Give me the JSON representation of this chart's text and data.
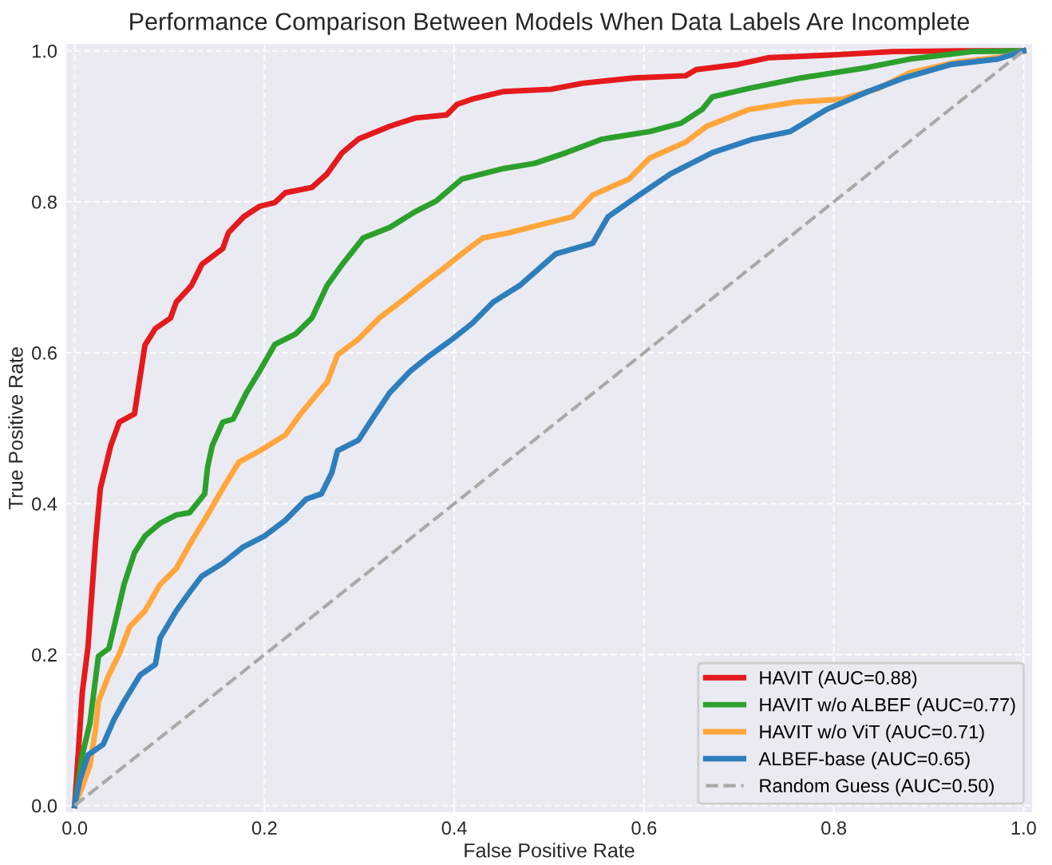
{
  "chart_data": {
    "type": "line",
    "title": "Performance Comparison Between Models When Data Labels Are Incomplete",
    "xlabel": "False Positive Rate",
    "ylabel": "True Positive Rate",
    "xlim": [
      -0.01,
      1.01
    ],
    "ylim": [
      -0.01,
      1.01
    ],
    "xticks": [
      {
        "value": 0,
        "label": "0.0"
      },
      0.2,
      0.4,
      0.6,
      0.8,
      {
        "value": 1,
        "label": "1.0"
      }
    ],
    "yticks": [
      {
        "value": 0,
        "label": "0.0"
      },
      0.2,
      0.4,
      0.6,
      0.8,
      {
        "value": 1,
        "label": "1.0"
      }
    ],
    "grid": true,
    "legend": "bottom right",
    "series": [
      {
        "name": "HAVIT (AUC=0.88)",
        "color": "#e41a1c",
        "x": [
          0,
          0.008,
          0.014,
          0.022,
          0.027,
          0.038,
          0.047,
          0.063,
          0.074,
          0.085,
          0.101,
          0.107,
          0.123,
          0.134,
          0.156,
          0.162,
          0.178,
          0.195,
          0.211,
          0.222,
          0.25,
          0.266,
          0.282,
          0.299,
          0.332,
          0.359,
          0.392,
          0.403,
          0.419,
          0.452,
          0.502,
          0.535,
          0.589,
          0.644,
          0.655,
          0.699,
          0.732,
          0.792,
          0.863,
          0.934,
          1
        ],
        "values": [
          0,
          0.15,
          0.21,
          0.35,
          0.42,
          0.477,
          0.508,
          0.519,
          0.61,
          0.632,
          0.646,
          0.667,
          0.689,
          0.717,
          0.738,
          0.759,
          0.78,
          0.794,
          0.799,
          0.812,
          0.819,
          0.837,
          0.865,
          0.883,
          0.9,
          0.911,
          0.915,
          0.929,
          0.936,
          0.946,
          0.949,
          0.957,
          0.964,
          0.967,
          0.975,
          0.982,
          0.991,
          0.994,
          0.999,
          1.0,
          1.0
        ]
      },
      {
        "name": "HAVIT w/o ALBEF (AUC=0.77)",
        "color": "#2ca02c",
        "x": [
          0,
          0.008,
          0.016,
          0.025,
          0.036,
          0.044,
          0.052,
          0.063,
          0.074,
          0.09,
          0.107,
          0.121,
          0.137,
          0.14,
          0.145,
          0.156,
          0.167,
          0.181,
          0.195,
          0.211,
          0.233,
          0.25,
          0.266,
          0.282,
          0.304,
          0.332,
          0.359,
          0.381,
          0.408,
          0.452,
          0.485,
          0.518,
          0.556,
          0.606,
          0.639,
          0.661,
          0.672,
          0.71,
          0.765,
          0.836,
          0.88,
          0.946,
          1
        ],
        "values": [
          0,
          0.067,
          0.109,
          0.198,
          0.208,
          0.25,
          0.293,
          0.335,
          0.357,
          0.374,
          0.385,
          0.388,
          0.413,
          0.448,
          0.477,
          0.508,
          0.512,
          0.547,
          0.576,
          0.611,
          0.625,
          0.646,
          0.689,
          0.717,
          0.752,
          0.766,
          0.787,
          0.801,
          0.83,
          0.844,
          0.851,
          0.865,
          0.883,
          0.893,
          0.904,
          0.922,
          0.939,
          0.95,
          0.964,
          0.978,
          0.989,
          0.999,
          1.0
        ]
      },
      {
        "name": "HAVIT w/o ViT (AUC=0.71)",
        "color": "#ffa73d",
        "x": [
          0,
          0.008,
          0.016,
          0.022,
          0.025,
          0.036,
          0.047,
          0.058,
          0.074,
          0.09,
          0.107,
          0.123,
          0.14,
          0.156,
          0.173,
          0.195,
          0.222,
          0.238,
          0.266,
          0.277,
          0.299,
          0.321,
          0.343,
          0.365,
          0.387,
          0.408,
          0.43,
          0.458,
          0.48,
          0.524,
          0.546,
          0.584,
          0.606,
          0.644,
          0.666,
          0.71,
          0.759,
          0.809,
          0.847,
          0.88,
          0.929,
          0.979,
          1
        ],
        "values": [
          0,
          0.025,
          0.053,
          0.102,
          0.138,
          0.173,
          0.201,
          0.237,
          0.258,
          0.293,
          0.314,
          0.35,
          0.385,
          0.42,
          0.455,
          0.47,
          0.491,
          0.519,
          0.561,
          0.597,
          0.618,
          0.646,
          0.667,
          0.689,
          0.71,
          0.731,
          0.752,
          0.759,
          0.766,
          0.78,
          0.809,
          0.83,
          0.858,
          0.879,
          0.9,
          0.922,
          0.932,
          0.936,
          0.95,
          0.971,
          0.985,
          0.992,
          1.0
        ]
      },
      {
        "name": "ALBEF-base (AUC=0.65)",
        "color": "#2e7ebc",
        "x": [
          0,
          0.005,
          0.014,
          0.03,
          0.041,
          0.052,
          0.069,
          0.085,
          0.09,
          0.107,
          0.123,
          0.134,
          0.156,
          0.178,
          0.2,
          0.222,
          0.244,
          0.26,
          0.271,
          0.277,
          0.299,
          0.315,
          0.332,
          0.354,
          0.375,
          0.398,
          0.419,
          0.441,
          0.469,
          0.507,
          0.546,
          0.562,
          0.595,
          0.628,
          0.672,
          0.715,
          0.754,
          0.792,
          0.836,
          0.874,
          0.924,
          0.973,
          1
        ],
        "values": [
          0,
          0.032,
          0.067,
          0.081,
          0.113,
          0.138,
          0.173,
          0.187,
          0.222,
          0.258,
          0.286,
          0.304,
          0.321,
          0.343,
          0.357,
          0.378,
          0.406,
          0.413,
          0.441,
          0.47,
          0.484,
          0.515,
          0.547,
          0.576,
          0.597,
          0.618,
          0.639,
          0.667,
          0.689,
          0.731,
          0.745,
          0.78,
          0.809,
          0.837,
          0.865,
          0.883,
          0.893,
          0.922,
          0.946,
          0.964,
          0.982,
          0.989,
          1.0
        ]
      },
      {
        "name": "Random Guess (AUC=0.50)",
        "color": "#a9a9a9",
        "line_style": "dashed",
        "x": [
          0,
          1
        ],
        "values": [
          0,
          1
        ]
      }
    ]
  }
}
